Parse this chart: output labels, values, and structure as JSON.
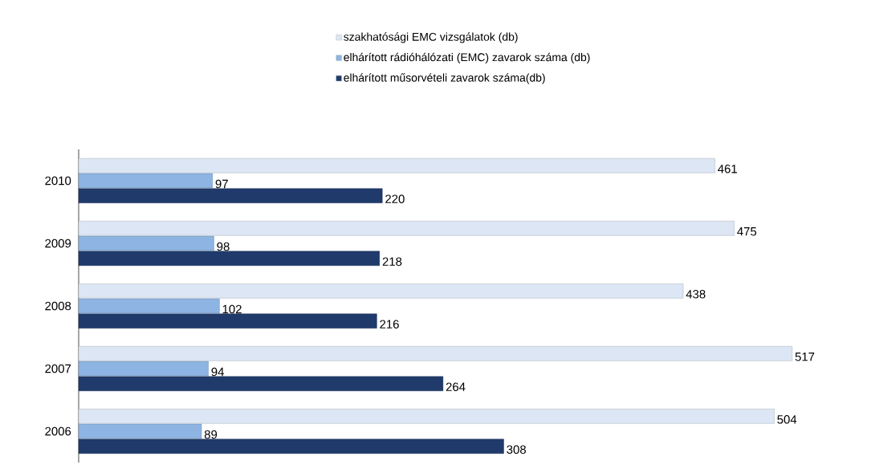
{
  "chart_data": {
    "type": "bar",
    "orientation": "horizontal",
    "data_labels": true,
    "legend": "top",
    "categories": [
      "2010",
      "2009",
      "2008",
      "2007",
      "2006"
    ],
    "series": [
      {
        "name": "szakhatósági EMC vizsgálatok (db)",
        "color": "#dce6f4",
        "values": [
          461,
          475,
          438,
          517,
          504
        ]
      },
      {
        "name": "elhárított rádióhálózati (EMC) zavarok száma (db)",
        "color": "#8db4e2",
        "values": [
          97,
          98,
          102,
          94,
          89
        ]
      },
      {
        "name": "elhárított műsorvételi zavarok száma(db)",
        "color": "#1f3a6b",
        "values": [
          220,
          218,
          216,
          264,
          308
        ]
      }
    ]
  }
}
